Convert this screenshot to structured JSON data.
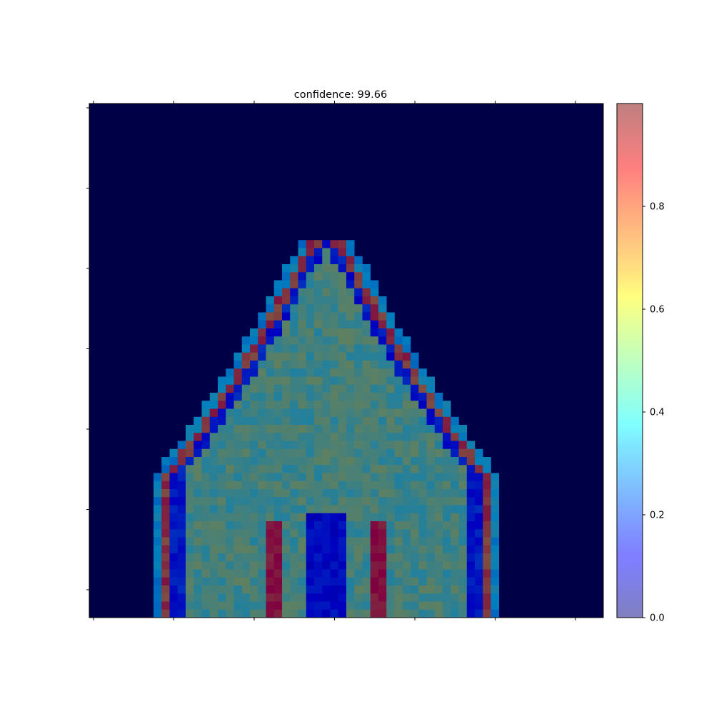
{
  "chart_data": {
    "type": "heatmap",
    "title": "confidence: 99.66",
    "grid_shape": [
      64,
      64
    ],
    "colormap": "jet",
    "overlay_alpha": 0.5,
    "x_tick_labels": [
      "",
      "",
      "",
      "",
      "",
      "",
      ""
    ],
    "y_tick_labels": [
      "",
      "",
      "",
      "",
      "",
      "",
      ""
    ],
    "colorbar": {
      "range": [
        0.0,
        1.0
      ],
      "ticks": [
        0.0,
        0.2,
        0.4,
        0.6,
        0.8
      ],
      "tick_labels": [
        "0.0",
        "0.2",
        "0.4",
        "0.6",
        "0.8"
      ]
    },
    "description_regions": {
      "skull_shape": "dome, top near row 16, widest at bottom",
      "outer_rim_value": 0.75,
      "brain_interior_value": 0.5,
      "dark_ring_value": 0.12,
      "background_value": 0.0
    }
  }
}
